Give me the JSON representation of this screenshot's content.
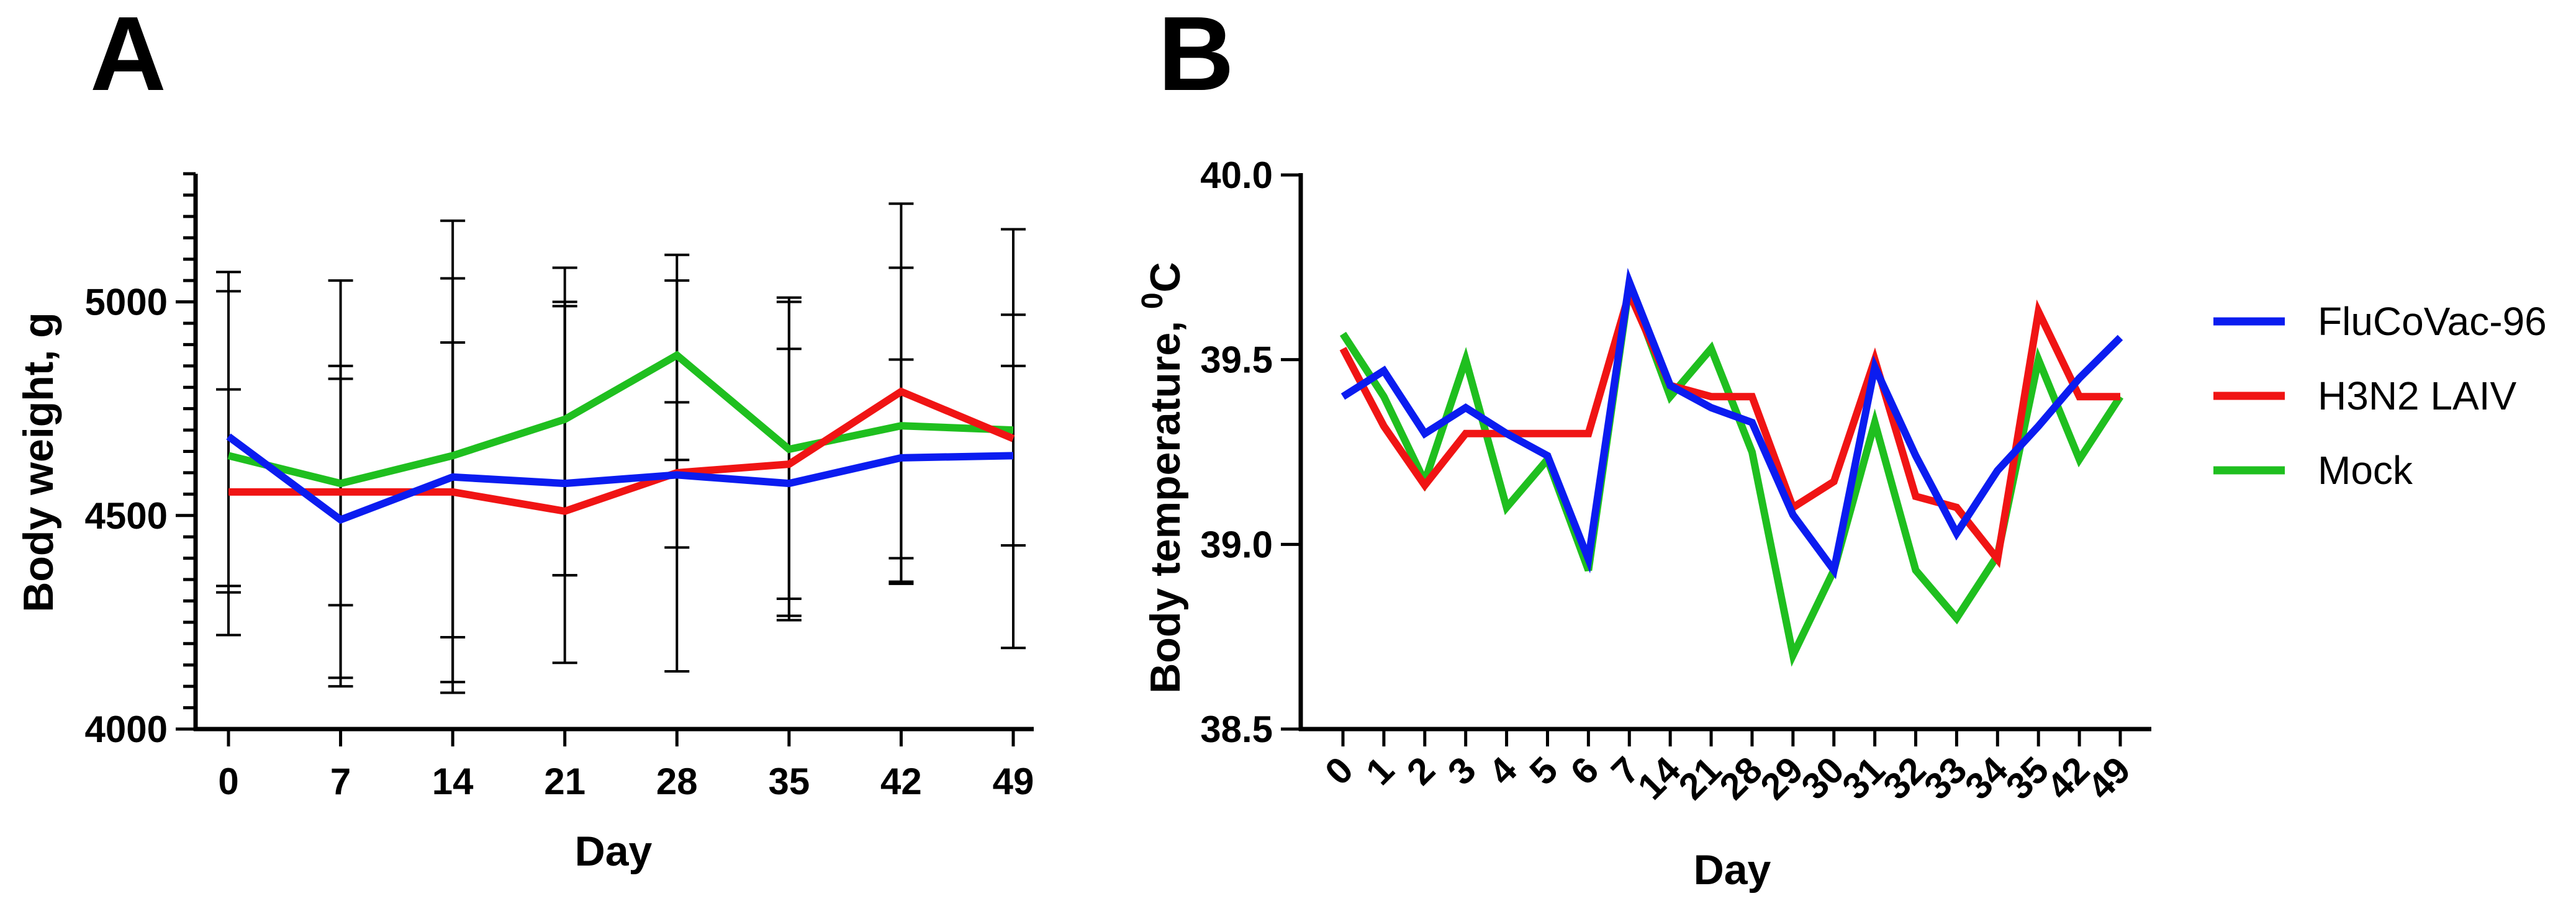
{
  "figure": {
    "legend_position": "right"
  },
  "legend": [
    {
      "name": "FluCoVac-96",
      "color": "#0b1cf0"
    },
    {
      "name": "H3N2 LAIV",
      "color": "#f01414"
    },
    {
      "name": "Mock",
      "color": "#1fbf1f"
    }
  ],
  "chart_data": [
    {
      "panel": "A",
      "type": "line",
      "title": "",
      "xlabel": "Day",
      "ylabel": "Body weight, g",
      "x": [
        0,
        7,
        14,
        21,
        28,
        35,
        42,
        49
      ],
      "categories": [
        "0",
        "7",
        "14",
        "21",
        "28",
        "35",
        "42",
        "49"
      ],
      "ylim": [
        4000,
        5300
      ],
      "yticks": [
        4000,
        4500,
        5000
      ],
      "minor_ytick_step": 50,
      "grid": false,
      "series": [
        {
          "name": "FluCoVac-96",
          "color": "#0b1cf0",
          "values": [
            4685,
            4490,
            4590,
            4575,
            4595,
            4575,
            4635,
            4640
          ],
          "error_low": [
            4335,
            4120,
            4110,
            4360,
            4425,
            4265,
            4400,
            4430
          ],
          "error_high": [
            5025,
            4850,
            5055,
            4990,
            4765,
            4890,
            4865,
            4850
          ]
        },
        {
          "name": "H3N2 LAIV",
          "color": "#f01414",
          "values": [
            4555,
            4555,
            4555,
            4510,
            4600,
            4620,
            4790,
            4680
          ],
          "error_low": [
            4220,
            4100,
            4085,
            4155,
            4135,
            4255,
            4345,
            4190
          ],
          "error_high": [
            5070,
            5050,
            5190,
            5080,
            5110,
            5010,
            5230,
            5170
          ]
        },
        {
          "name": "Mock",
          "color": "#1fbf1f",
          "values": [
            4640,
            4575,
            4640,
            4725,
            4875,
            4655,
            4710,
            4700
          ],
          "error_low": [
            4320,
            4290,
            4215,
            4360,
            4630,
            4305,
            4340,
            4430
          ],
          "error_high": [
            4795,
            4820,
            4905,
            5000,
            5050,
            5000,
            5080,
            4970
          ]
        }
      ]
    },
    {
      "panel": "B",
      "type": "line",
      "title": "",
      "xlabel": "Day",
      "ylabel": "Body temperature, ",
      "ylabel_superscript": "0",
      "ylabel_suffix": "C",
      "categories": [
        "0",
        "1",
        "2",
        "3",
        "4",
        "5",
        "6",
        "7",
        "14",
        "21",
        "28",
        "29",
        "30",
        "31",
        "32",
        "33",
        "34",
        "35",
        "42",
        "49"
      ],
      "ylim": [
        38.5,
        40.0
      ],
      "yticks": [
        38.5,
        39.0,
        39.5,
        40.0
      ],
      "ytick_labels": [
        "38.5",
        "39.0",
        "39.5",
        "40.0"
      ],
      "grid": false,
      "series": [
        {
          "name": "FluCoVac-96",
          "color": "#0b1cf0",
          "values": [
            39.4,
            39.47,
            39.3,
            39.37,
            39.3,
            39.24,
            38.96,
            39.71,
            39.43,
            39.37,
            39.33,
            39.08,
            38.93,
            39.48,
            39.24,
            39.03,
            39.2,
            39.32,
            39.45,
            39.56
          ]
        },
        {
          "name": "H3N2 LAIV",
          "color": "#f01414",
          "values": [
            39.53,
            39.32,
            39.16,
            39.3,
            39.3,
            39.3,
            39.3,
            39.68,
            39.43,
            39.4,
            39.4,
            39.1,
            39.17,
            39.5,
            39.13,
            39.1,
            38.96,
            39.63,
            39.4,
            39.4
          ]
        },
        {
          "name": "Mock",
          "color": "#1fbf1f",
          "values": [
            39.57,
            39.4,
            39.17,
            39.5,
            39.1,
            39.23,
            38.93,
            39.7,
            39.4,
            39.53,
            39.25,
            38.7,
            38.93,
            39.33,
            38.93,
            38.8,
            38.97,
            39.5,
            39.23,
            39.4
          ]
        }
      ]
    }
  ]
}
